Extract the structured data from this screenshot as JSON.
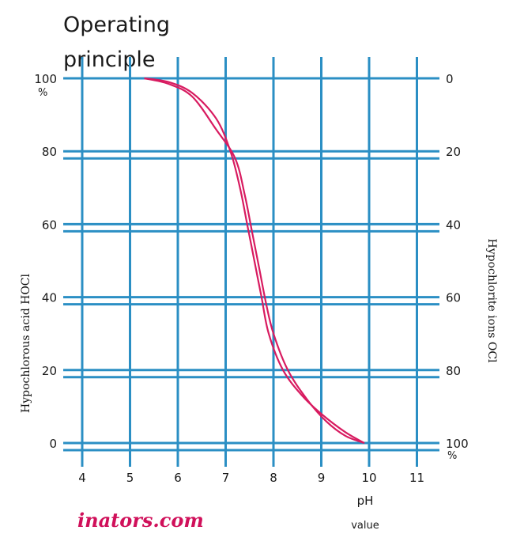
{
  "chart_data": {
    "type": "line",
    "title_line1": "Operating",
    "title_line2": "principle",
    "xlabel_line1": "pH",
    "xlabel_line2": "value",
    "ylabel_left": "Hypochlorous acid HOCl",
    "ylabel_right": "Hypochlorite ions OCl",
    "y_unit_left": "%",
    "y_unit_right": "%",
    "xlim": [
      4,
      11
    ],
    "ylim": [
      0,
      100
    ],
    "x_ticks": [
      "4",
      "5",
      "6",
      "7",
      "8",
      "9",
      "10",
      "11"
    ],
    "y_ticks_left": [
      "0",
      "20",
      "40",
      "60",
      "80",
      "100"
    ],
    "y_ticks_right": [
      "100",
      "80",
      "60",
      "40",
      "20",
      "0"
    ],
    "grid": true,
    "series": [
      {
        "x": [
          5.3,
          5.8,
          6.3,
          6.8,
          7.1,
          7.3,
          7.45,
          7.6,
          7.75,
          7.9,
          8.2,
          8.6,
          9.0,
          9.5,
          9.9
        ],
        "values": [
          100,
          99,
          96,
          89,
          80,
          70,
          60,
          50,
          40,
          30,
          20,
          13,
          8,
          3,
          0
        ]
      },
      {
        "x": [
          5.3,
          5.8,
          6.3,
          6.8,
          7.2,
          7.4,
          7.55,
          7.7,
          7.85,
          8.0,
          8.3,
          8.7,
          9.1,
          9.5,
          9.9
        ],
        "values": [
          100,
          98.5,
          95,
          86,
          78,
          68,
          58,
          48,
          38,
          30,
          20,
          12,
          6,
          2,
          0
        ]
      }
    ],
    "colors": {
      "grid": "#2b8fc4",
      "curve": "#d81b60",
      "watermark": "#d0105a"
    }
  },
  "watermark": "inators.com"
}
